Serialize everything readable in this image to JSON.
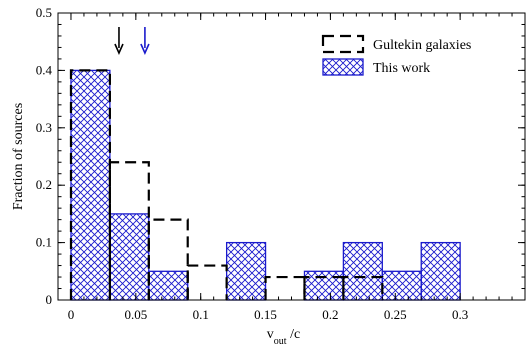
{
  "chart_data": {
    "type": "bar",
    "bin_width": 0.03,
    "xlim": [
      -0.01,
      0.35
    ],
    "ylim": [
      0,
      0.5
    ],
    "x_ticks": [
      0,
      0.05,
      0.1,
      0.15,
      0.2,
      0.25,
      0.3
    ],
    "x_tick_labels": [
      "0",
      "0.05",
      "0.1",
      "0.15",
      "0.2",
      "0.25",
      "0.3"
    ],
    "y_ticks": [
      0,
      0.1,
      0.2,
      0.3,
      0.4,
      0.5
    ],
    "y_tick_labels": [
      "0",
      "0.1",
      "0.2",
      "0.3",
      "0.4",
      "0.5"
    ],
    "xlabel_main": "v",
    "xlabel_sub": "out",
    "xlabel_tail": " /c",
    "ylabel": "Fraction of sources",
    "legend_position": "top-right",
    "series": [
      {
        "name": "Gultekin galaxies",
        "style": "dashed-outline",
        "color": "#000000",
        "bins": [
          {
            "x": 0.0,
            "value": 0.4
          },
          {
            "x": 0.03,
            "value": 0.24
          },
          {
            "x": 0.06,
            "value": 0.14
          },
          {
            "x": 0.09,
            "value": 0.06
          },
          {
            "x": 0.15,
            "value": 0.04
          },
          {
            "x": 0.18,
            "value": 0.04
          },
          {
            "x": 0.21,
            "value": 0.04
          }
        ]
      },
      {
        "name": "This work",
        "style": "crosshatch",
        "color": "#1a1acc",
        "bins": [
          {
            "x": 0.0,
            "value": 0.4
          },
          {
            "x": 0.03,
            "value": 0.15
          },
          {
            "x": 0.06,
            "value": 0.05
          },
          {
            "x": 0.12,
            "value": 0.1
          },
          {
            "x": 0.18,
            "value": 0.05
          },
          {
            "x": 0.21,
            "value": 0.1
          },
          {
            "x": 0.24,
            "value": 0.05
          },
          {
            "x": 0.27,
            "value": 0.1
          }
        ]
      }
    ],
    "arrows": [
      {
        "x": 0.037,
        "color": "#000000"
      },
      {
        "x": 0.057,
        "color": "#1a1acc"
      }
    ]
  }
}
